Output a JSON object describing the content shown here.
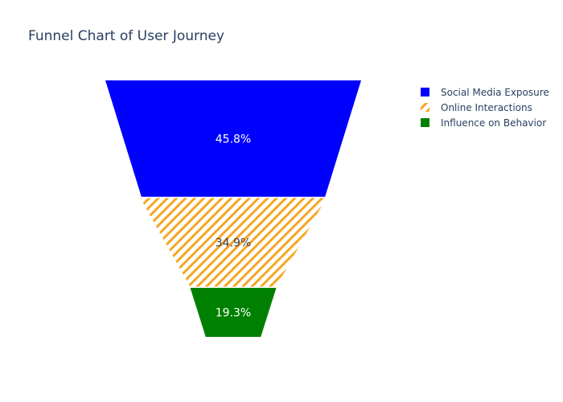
{
  "chart_data": {
    "type": "funnel",
    "title": "Funnel Chart of User Journey",
    "stages": [
      {
        "name": "Social Media Exposure",
        "percent": 45.8,
        "label": "45.8%",
        "color": "#0000ff",
        "pattern": "solid",
        "label_color": "#ffffff"
      },
      {
        "name": "Online Interactions",
        "percent": 34.9,
        "label": "34.9%",
        "color": "#f5a623",
        "pattern": "diagonal-stripes",
        "label_color": "#444444"
      },
      {
        "name": "Influence on Behavior",
        "percent": 19.3,
        "label": "19.3%",
        "color": "#008000",
        "pattern": "solid",
        "label_color": "#ffffff"
      }
    ],
    "legend_position": "top-right"
  }
}
